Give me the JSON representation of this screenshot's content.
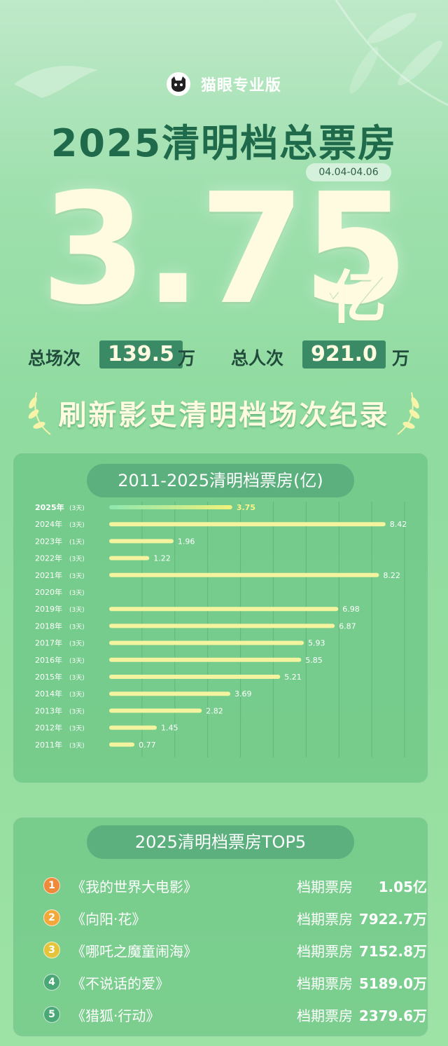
{
  "brand": {
    "name": "猫眼专业版"
  },
  "title": "2025清明档总票房",
  "date_range": "04.04-04.06",
  "headline": {
    "value": "3.75",
    "unit": "亿"
  },
  "stats": [
    {
      "label": "总场次",
      "value": "139.5",
      "unit": "万"
    },
    {
      "label": "总人次",
      "value": "921.0",
      "unit": "万"
    }
  ],
  "record_text": "刷新影史清明档场次纪录",
  "chart_data": {
    "type": "bar",
    "orientation": "horizontal",
    "title": "2011-2025清明档票房(亿)",
    "categories": [
      "2025年",
      "2024年",
      "2023年",
      "2022年",
      "2021年",
      "2020年",
      "2019年",
      "2018年",
      "2017年",
      "2016年",
      "2015年",
      "2014年",
      "2013年",
      "2012年",
      "2011年"
    ],
    "sublabels": [
      "(3天)",
      "(3天)",
      "(1天)",
      "(3天)",
      "(3天)",
      "(3天)",
      "(3天)",
      "(3天)",
      "(3天)",
      "(3天)",
      "(3天)",
      "(3天)",
      "(3天)",
      "(3天)",
      "(3天)"
    ],
    "values": [
      3.75,
      8.42,
      1.96,
      1.22,
      8.22,
      null,
      6.98,
      6.87,
      5.93,
      5.85,
      5.21,
      3.69,
      2.82,
      1.45,
      0.77
    ],
    "value_labels": [
      "3.75",
      "8.42",
      "1.96",
      "1.22",
      "8.22",
      "",
      "6.98",
      "6.87",
      "5.93",
      "5.85",
      "5.21",
      "3.69",
      "2.82",
      "1.45",
      "0.77"
    ],
    "xlim": [
      0,
      9
    ],
    "grid": true,
    "colors": {
      "bar": "#f4f4a0",
      "highlight_start": "#8fe7b0",
      "highlight_end": "#f1f27a",
      "highlight_label": "#fbf38a"
    }
  },
  "top5": {
    "title": "2025清明档票房TOP5",
    "period_label": "档期票房",
    "items": [
      {
        "rank": "1",
        "film": "《我的世界大电影》",
        "gross": "1.05亿",
        "color": "#f08a3b"
      },
      {
        "rank": "2",
        "film": "《向阳·花》",
        "gross": "7922.7万",
        "color": "#f2a93a"
      },
      {
        "rank": "3",
        "film": "《哪吒之魔童闹海》",
        "gross": "7152.8万",
        "color": "#e6c43a"
      },
      {
        "rank": "4",
        "film": "《不说话的爱》",
        "gross": "5189.0万",
        "color": "#4aa877"
      },
      {
        "rank": "5",
        "film": "《猎狐·行动》",
        "gross": "2379.6万",
        "color": "#4aa877"
      }
    ]
  }
}
